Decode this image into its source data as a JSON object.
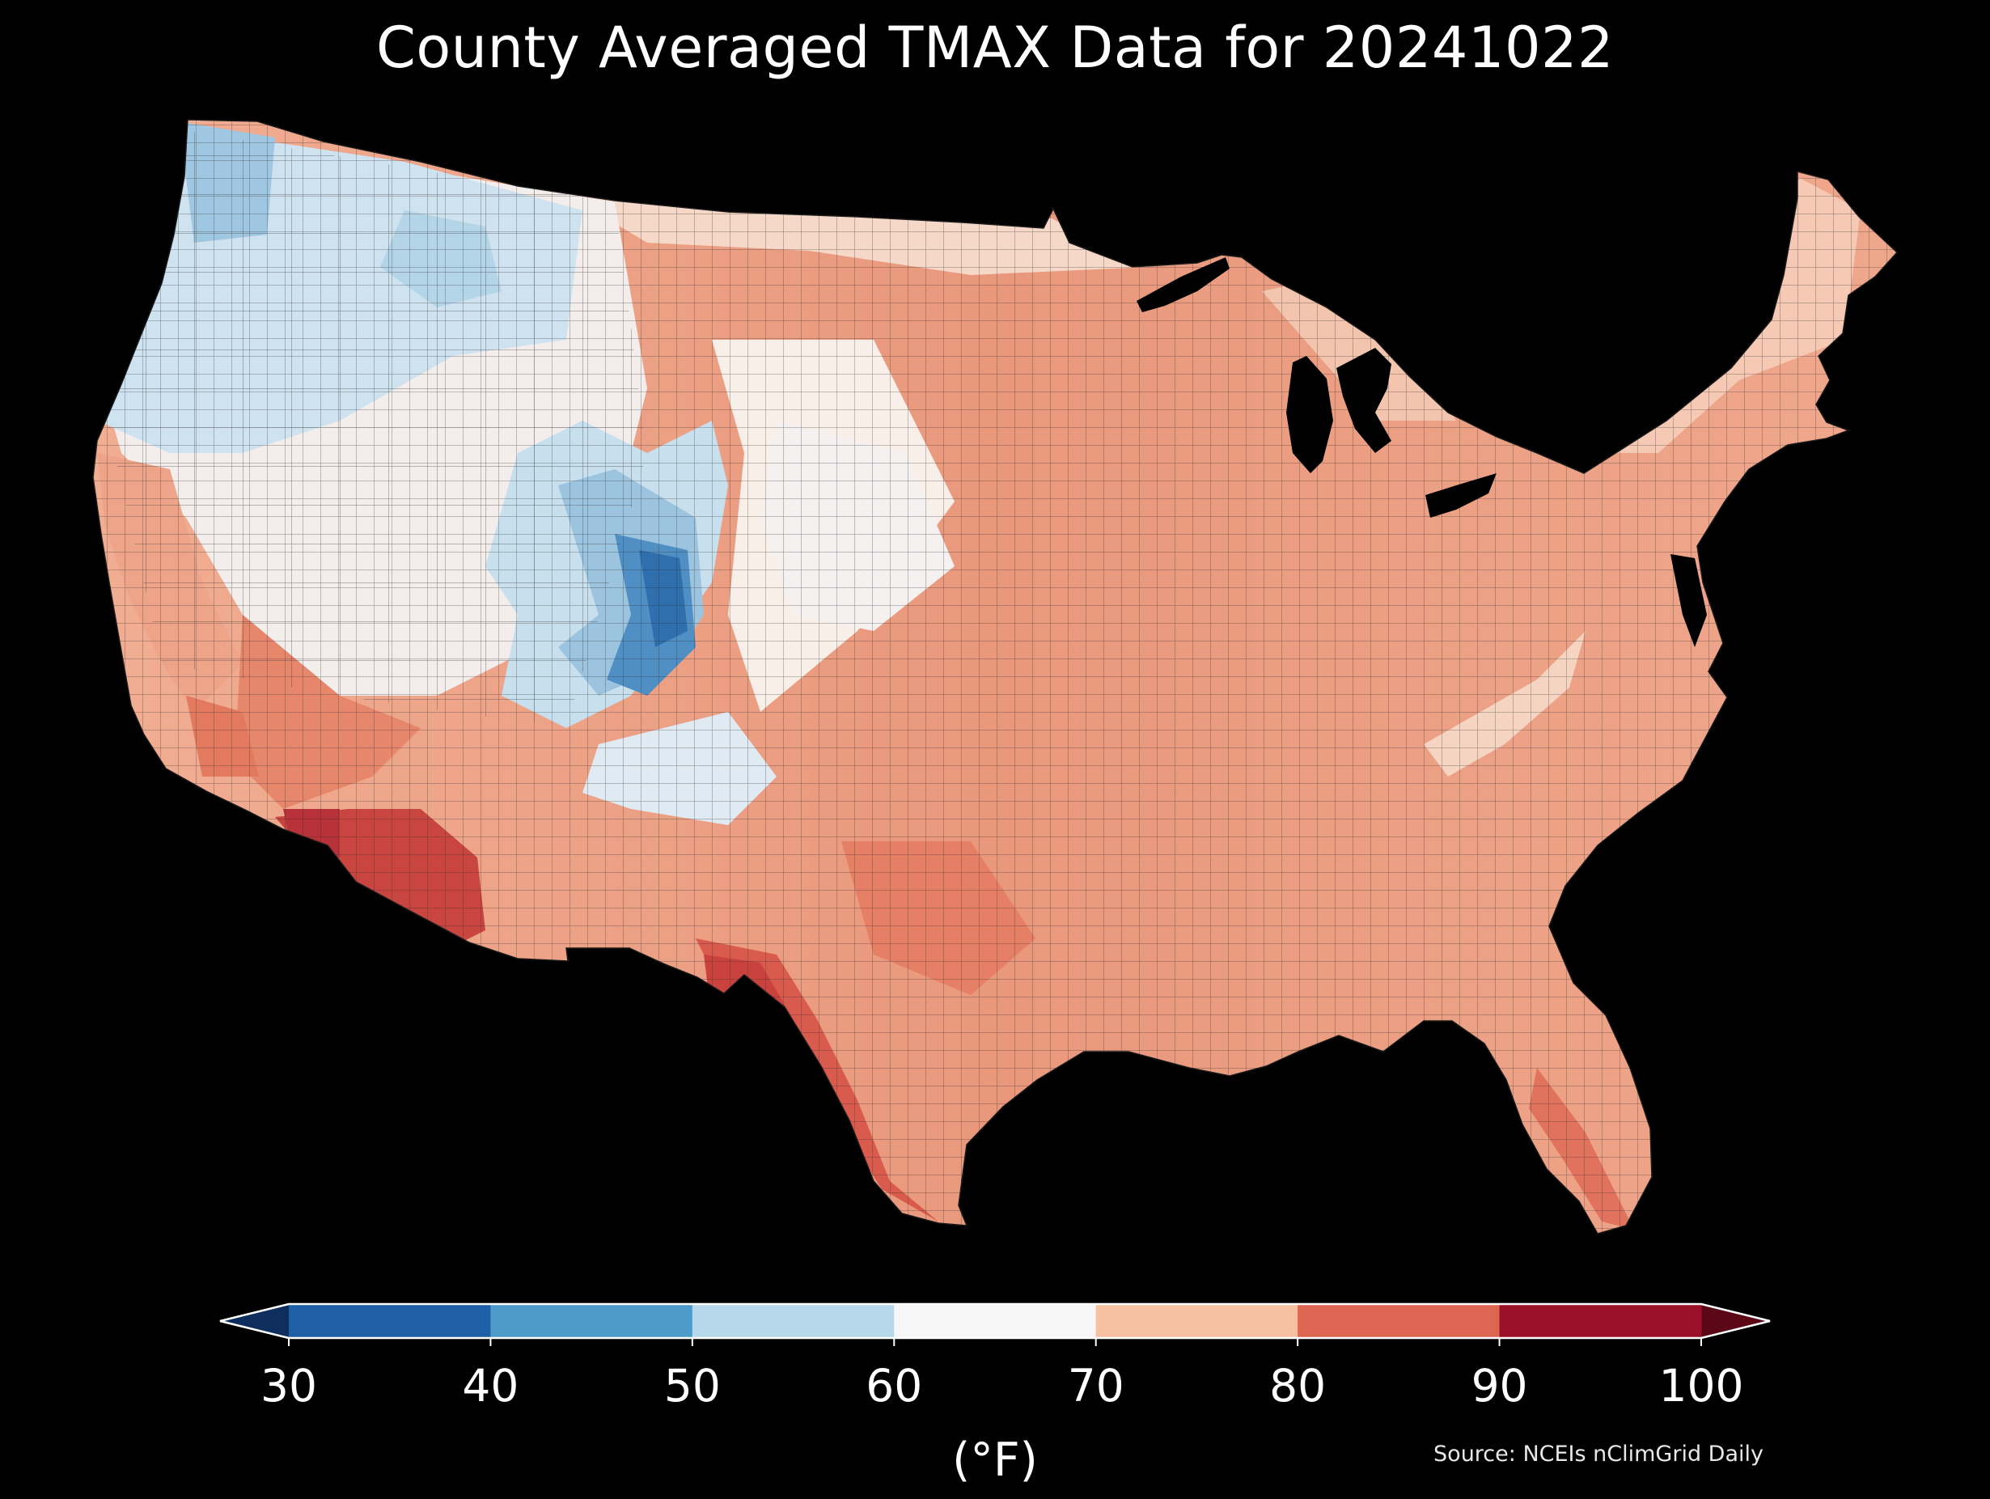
{
  "map": {
    "title": "County Averaged TMAX Data for 20241022",
    "source": "Source: NCEIs nClimGrid Daily",
    "region": "contiguous United States (county level)",
    "variable": "TMAX"
  },
  "colorbar": {
    "unit_label": "(°F)",
    "tick_labels": [
      "30",
      "40",
      "50",
      "60",
      "70",
      "80",
      "90",
      "100"
    ],
    "extend": "both",
    "colors": {
      "under": "#0e2e5e",
      "bins": [
        "#1f5fa6",
        "#4c9bc8",
        "#b7d8ea",
        "#f6f6f6",
        "#f8c0a3",
        "#dc6652",
        "#9a1028"
      ],
      "over": "#5c0715"
    }
  },
  "legend_placement": "bottom-center",
  "colors": {
    "background": "#000000",
    "text": "#ffffff",
    "county_border": "#2a2a2a"
  }
}
